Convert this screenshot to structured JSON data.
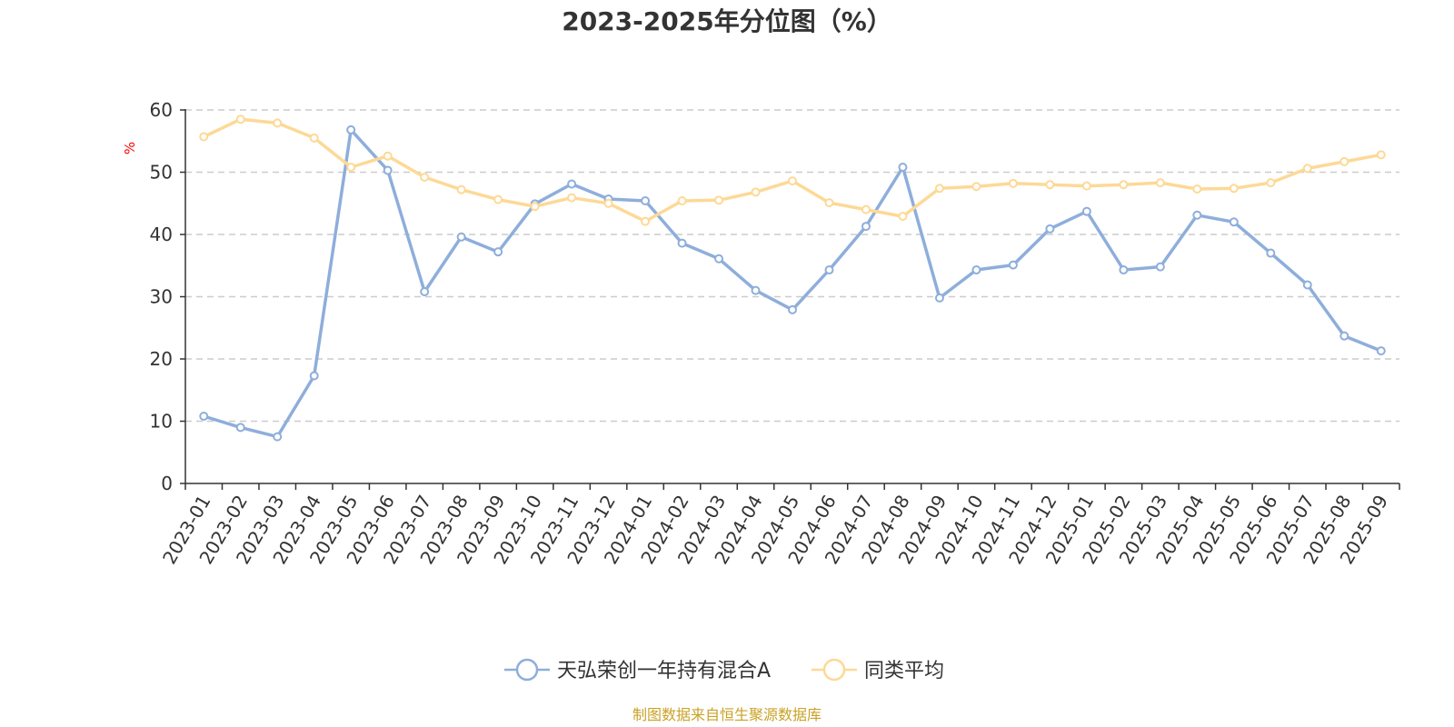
{
  "colors": {
    "series1": "#8eaedb",
    "series2": "#fdd996",
    "ylabel": "#ff0000",
    "source": "#c9a227",
    "grid": "#cccccc",
    "axis": "#333333"
  },
  "source_text": "制图数据来自恒生聚源数据库",
  "chart_data": {
    "type": "line",
    "title": "2023-2025年分位图（%）",
    "ylabel": "%",
    "xlabel": "",
    "ylim": [
      0,
      60
    ],
    "yticks": [
      0,
      10,
      20,
      30,
      40,
      50,
      60
    ],
    "grid": true,
    "legend": "bottom-center",
    "categories": [
      "2023-01",
      "2023-02",
      "2023-03",
      "2023-04",
      "2023-05",
      "2023-06",
      "2023-07",
      "2023-08",
      "2023-09",
      "2023-10",
      "2023-11",
      "2023-12",
      "2024-01",
      "2024-02",
      "2024-03",
      "2024-04",
      "2024-05",
      "2024-06",
      "2024-07",
      "2024-08",
      "2024-09",
      "2024-10",
      "2024-11",
      "2024-12",
      "2025-01",
      "2025-02",
      "2025-03",
      "2025-04",
      "2025-05",
      "2025-06",
      "2025-07",
      "2025-08",
      "2025-09"
    ],
    "series": [
      {
        "name": "天弘荣创一年持有混合A",
        "values": [
          10.8,
          9.0,
          7.5,
          17.3,
          56.8,
          50.3,
          30.8,
          39.6,
          37.2,
          44.9,
          48.1,
          45.7,
          45.4,
          38.6,
          36.1,
          31.0,
          27.9,
          34.3,
          41.3,
          50.8,
          29.8,
          34.3,
          35.1,
          40.9,
          43.7,
          34.3,
          34.8,
          43.1,
          42.0,
          37.0,
          31.9,
          23.7,
          21.3
        ]
      },
      {
        "name": "同类平均",
        "values": [
          55.7,
          58.5,
          57.9,
          55.5,
          50.8,
          52.6,
          49.2,
          47.2,
          45.6,
          44.5,
          45.9,
          45.0,
          42.1,
          45.4,
          45.5,
          46.8,
          48.6,
          45.1,
          44.0,
          42.9,
          47.4,
          47.7,
          48.2,
          48.0,
          47.8,
          48.0,
          48.3,
          47.3,
          47.4,
          48.3,
          50.6,
          51.7,
          52.8
        ]
      }
    ]
  }
}
